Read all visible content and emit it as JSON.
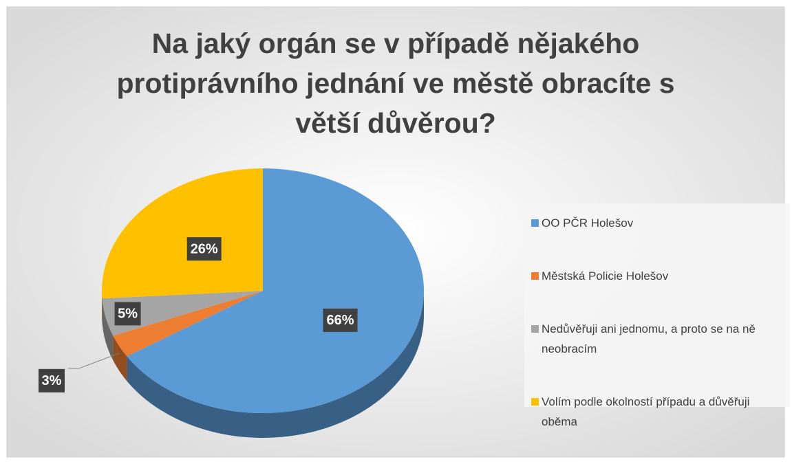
{
  "chart_data": {
    "type": "pie",
    "title": "Na jaký orgán se v případě nějakého protiprávního jednání ve městě obracíte s větší důvěrou?",
    "categories": [
      "OO PČR Holešov",
      "Městská Policie Holešov",
      "Nedůvěřuji ani jednomu, a proto se na ně neobracím",
      "Volím podle okolností případu a důvěřuji oběma"
    ],
    "values": [
      66,
      3,
      5,
      26
    ],
    "value_labels": [
      "66%",
      "3%",
      "5%",
      "26%"
    ],
    "colors": [
      "#5b9bd5",
      "#ed7d31",
      "#a5a5a5",
      "#ffc000"
    ],
    "legend": "right"
  }
}
